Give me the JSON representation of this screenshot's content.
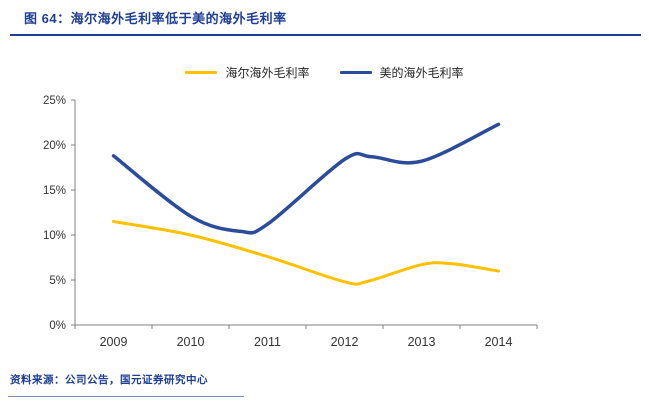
{
  "header": {
    "title": "图 64：海尔海外毛利率低于美的海外毛利率"
  },
  "source": "资料来源：公司公告，国元证券研究中心",
  "colors": {
    "accent": "#1F3F94",
    "haier_line": "#FFC000",
    "midea_line": "#2B4B9B",
    "axis": "#808080",
    "tick_text": "#333333"
  },
  "chart_data": {
    "type": "line",
    "title": "海尔海外毛利率低于美的海外毛利率",
    "categories": [
      2009,
      2010,
      2011,
      2012,
      2013,
      2014
    ],
    "ylim": [
      0,
      25
    ],
    "grid": false,
    "legend_position": "top",
    "y_ticks": [
      {
        "value": 0,
        "label": "0%"
      },
      {
        "value": 5,
        "label": "5%"
      },
      {
        "value": 10,
        "label": "10%"
      },
      {
        "value": 15,
        "label": "15%"
      },
      {
        "value": 20,
        "label": "20%"
      },
      {
        "value": 25,
        "label": "25%"
      }
    ],
    "series": [
      {
        "name": "海尔海外毛利率",
        "color": "#FFC000",
        "x": [
          2009,
          2010,
          2011,
          2012,
          2012.3,
          2013,
          2013.4,
          2014
        ],
        "y": [
          11.5,
          10.0,
          7.6,
          4.8,
          4.85,
          6.7,
          6.8,
          6.0
        ]
      },
      {
        "name": "美的海外毛利率",
        "color": "#2B4B9B",
        "x": [
          2009,
          2010,
          2010.65,
          2011,
          2012,
          2012.35,
          2013,
          2014
        ],
        "y": [
          18.8,
          12.1,
          10.4,
          11.2,
          18.4,
          18.7,
          18.2,
          22.3
        ]
      }
    ]
  }
}
